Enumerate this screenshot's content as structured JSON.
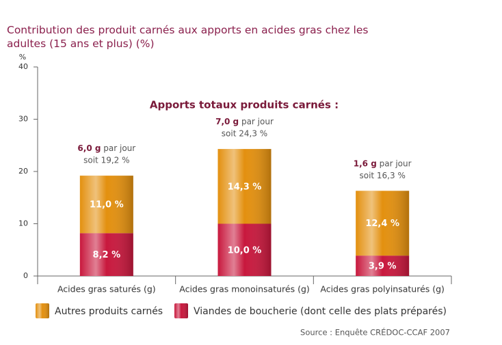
{
  "chart_data": {
    "type": "stacked_bar",
    "title": "Contribution des produit carnés aux apports en acides gras chez les adultes (15 ans et plus) (%)",
    "y_label": "%",
    "subtitle": "Apports totaux produits carnés :",
    "categories": [
      "Acides gras saturés (g)",
      "Acides gras monoinsaturés (g)",
      "Acides gras polyinsaturés (g)"
    ],
    "series": [
      {
        "name": "Viandes de boucherie (dont celle des plats préparés)",
        "color": "#c8183d",
        "values": [
          8.2,
          10.0,
          3.9
        ],
        "value_labels": [
          "8,2 %",
          "10,0 %",
          "3,9 %"
        ]
      },
      {
        "name": "Autres produits carnés",
        "color": "#e3900f",
        "values": [
          11.0,
          14.3,
          12.4
        ],
        "value_labels": [
          "11,0 %",
          "14,3 %",
          "12,4 %"
        ]
      }
    ],
    "annotations": [
      {
        "amount": "6,0 g",
        "per": "par jour",
        "share": "soit 19,2 %"
      },
      {
        "amount": "7,0 g",
        "per": "par jour",
        "share": "soit 24,3 %"
      },
      {
        "amount": "1,6 g",
        "per": "par jour",
        "share": "soit 16,3 %"
      }
    ],
    "ylim": [
      0,
      40
    ],
    "yticks": [
      0,
      10,
      20,
      30,
      40
    ],
    "source": "Source : Enquête CRÉDOC-CCAF 2007"
  }
}
